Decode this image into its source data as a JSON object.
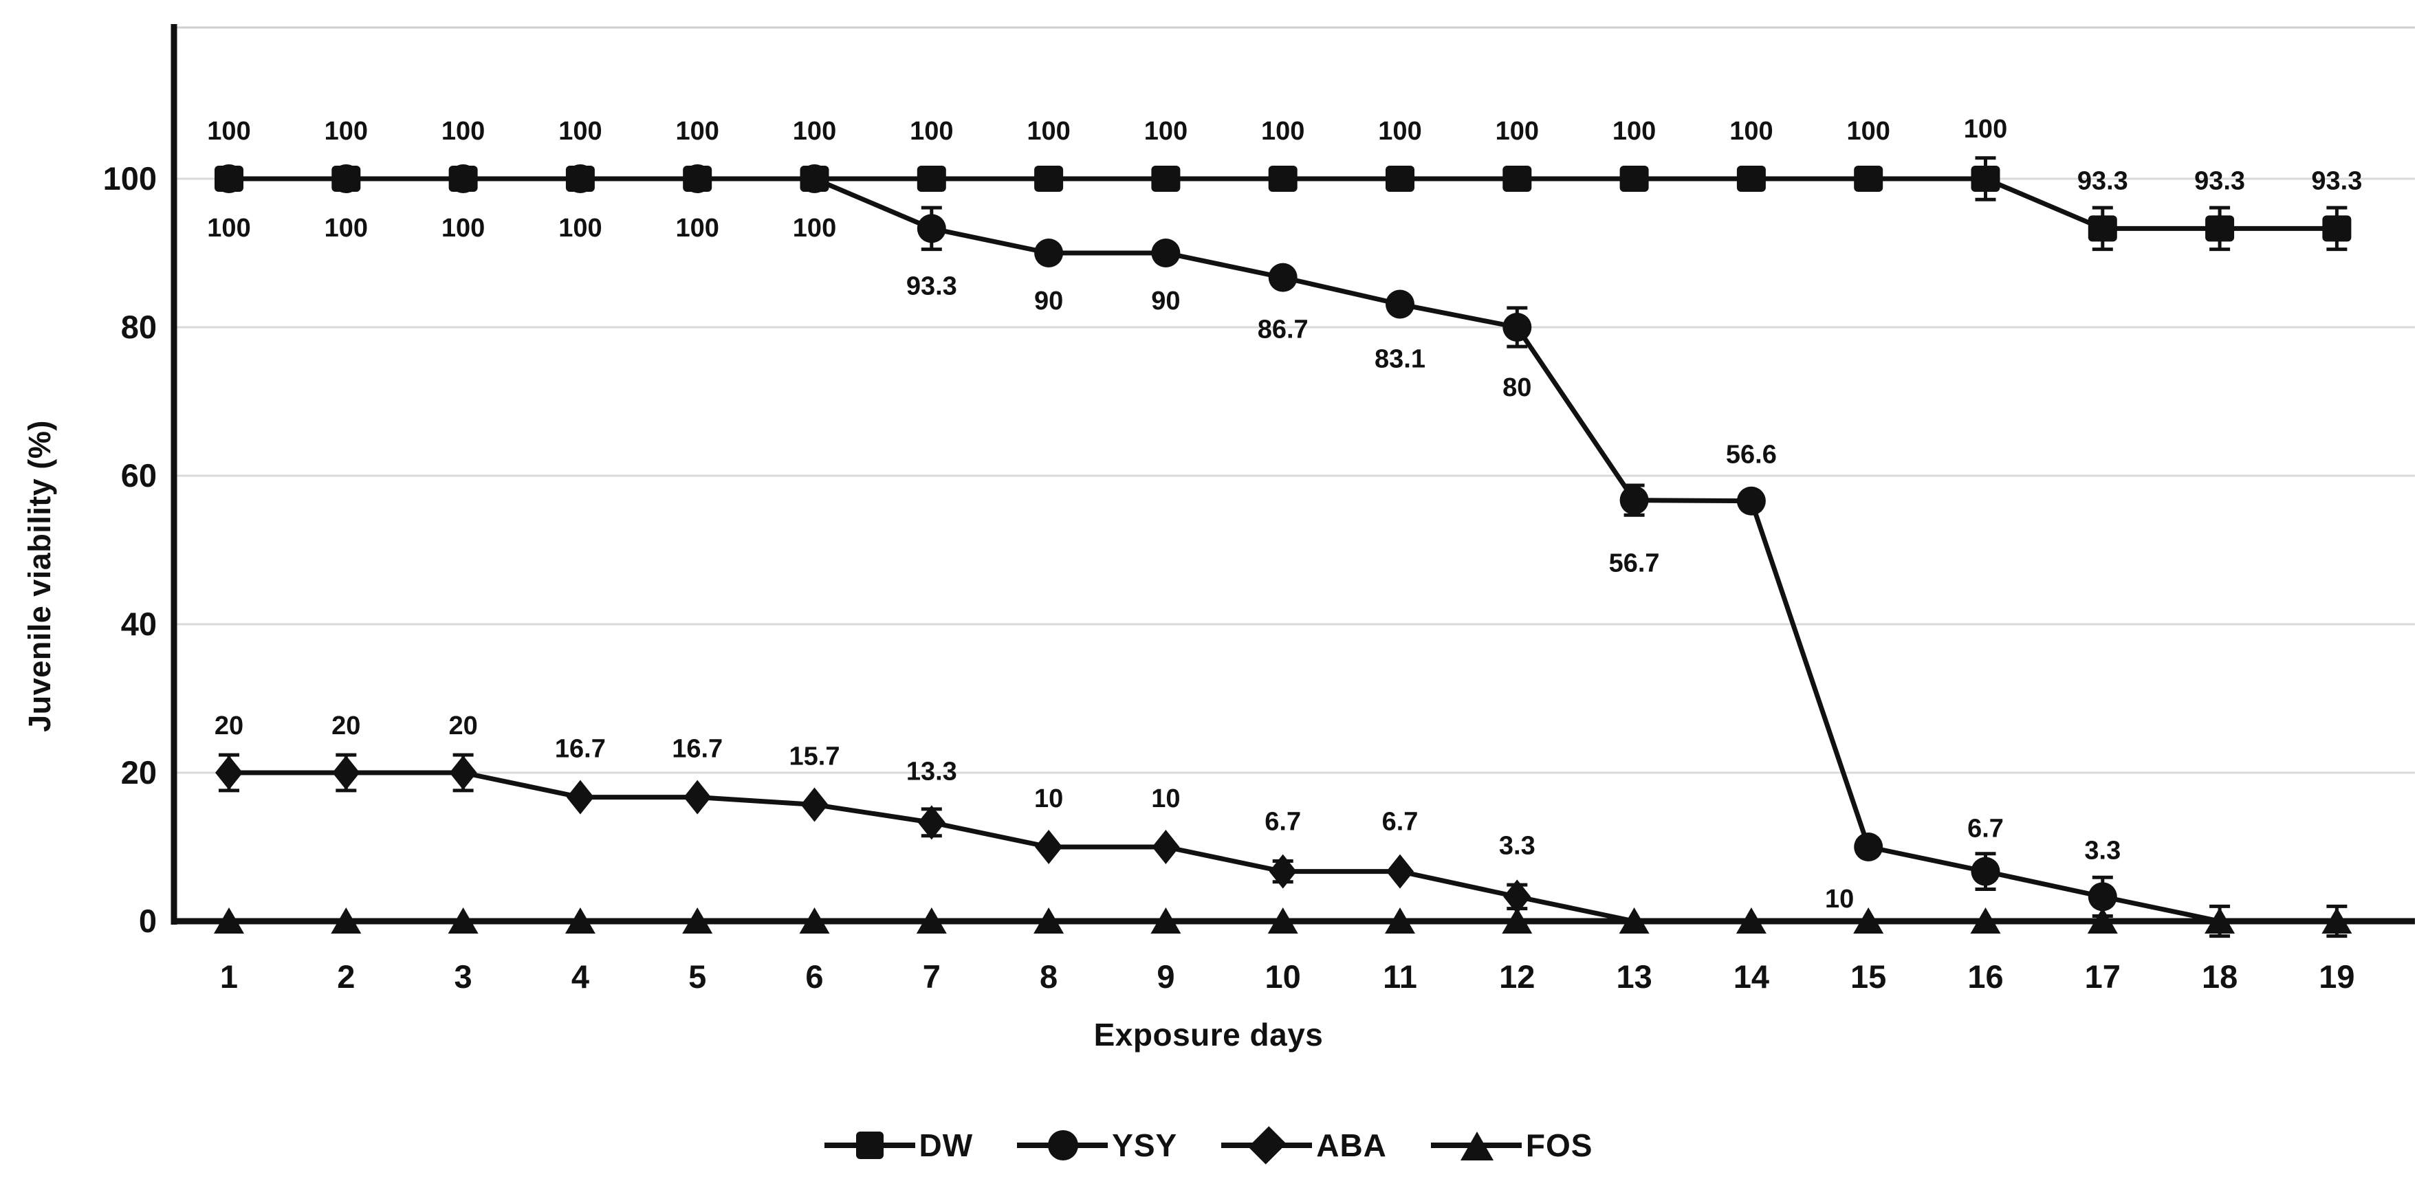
{
  "figure": {
    "type_label": "line chart",
    "background": "#ffffff"
  },
  "colors": {
    "foreground": "#111111",
    "grid": "#dadada",
    "top_border": "#cfcfcf",
    "background": "#ffffff"
  },
  "axes": {
    "ylabel": "Juvenile viability (%)",
    "xlabel": "Exposure days",
    "yticks": [
      0,
      20,
      40,
      60,
      80,
      100
    ],
    "ylim": [
      0,
      120
    ]
  },
  "legend": {
    "position": "bottom",
    "entries": [
      "DW",
      "YSY",
      "ABA",
      "FOS"
    ]
  },
  "chart_data": {
    "type": "line",
    "title": "",
    "xlabel": "Exposure days",
    "ylabel": "Juvenile viability (%)",
    "ylim": [
      0,
      120
    ],
    "grid": "horizontal",
    "legend_position": "bottom",
    "x": [
      1,
      2,
      3,
      4,
      5,
      6,
      7,
      8,
      9,
      10,
      11,
      12,
      13,
      14,
      15,
      16,
      17,
      18,
      19
    ],
    "yticks": [
      0,
      20,
      40,
      60,
      80,
      100
    ],
    "series": [
      {
        "name": "DW",
        "marker": "square",
        "values": [
          100,
          100,
          100,
          100,
          100,
          100,
          100,
          100,
          100,
          100,
          100,
          100,
          100,
          100,
          100,
          100,
          93.3,
          93.3,
          93.3
        ],
        "err": {
          "16": 2.8,
          "17": 2.8,
          "18": 2.8,
          "19": 2.8
        },
        "hide_markers": [],
        "point_labels": [
          {
            "day": 1,
            "text": "100",
            "dx": 0,
            "dy": -57
          },
          {
            "day": 2,
            "text": "100",
            "dx": 0,
            "dy": -57
          },
          {
            "day": 3,
            "text": "100",
            "dx": 0,
            "dy": -57
          },
          {
            "day": 4,
            "text": "100",
            "dx": 0,
            "dy": -57
          },
          {
            "day": 5,
            "text": "100",
            "dx": 0,
            "dy": -57
          },
          {
            "day": 6,
            "text": "100",
            "dx": 0,
            "dy": -57
          },
          {
            "day": 7,
            "text": "100",
            "dx": 0,
            "dy": -57
          },
          {
            "day": 8,
            "text": "100",
            "dx": 0,
            "dy": -57
          },
          {
            "day": 9,
            "text": "100",
            "dx": 0,
            "dy": -57
          },
          {
            "day": 10,
            "text": "100",
            "dx": 0,
            "dy": -57
          },
          {
            "day": 11,
            "text": "100",
            "dx": 0,
            "dy": -57
          },
          {
            "day": 12,
            "text": "100",
            "dx": 0,
            "dy": -57
          },
          {
            "day": 13,
            "text": "100",
            "dx": 0,
            "dy": -57
          },
          {
            "day": 14,
            "text": "100",
            "dx": 0,
            "dy": -57
          },
          {
            "day": 15,
            "text": "100",
            "dx": 0,
            "dy": -57
          },
          {
            "day": 16,
            "text": "100",
            "dx": 0,
            "dy": -60
          },
          {
            "day": 17,
            "text": "93.3",
            "dx": 0,
            "dy": -57
          },
          {
            "day": 18,
            "text": "93.3",
            "dx": 0,
            "dy": -57
          },
          {
            "day": 19,
            "text": "93.3",
            "dx": 0,
            "dy": -57
          }
        ]
      },
      {
        "name": "YSY",
        "marker": "circle",
        "values": [
          100,
          100,
          100,
          100,
          100,
          100,
          93.3,
          90,
          90,
          86.7,
          83.1,
          80,
          56.7,
          56.6,
          10,
          6.7,
          3.3,
          0,
          0
        ],
        "err": {
          "7": 2.8,
          "12": 2.6,
          "13": 2.0,
          "16": 2.4,
          "17": 2.6,
          "18": 2.0,
          "19": 2.0
        },
        "hide_markers": [
          18,
          19
        ],
        "point_labels": [
          {
            "day": 1,
            "text": "100",
            "dx": 0,
            "dy": 84
          },
          {
            "day": 2,
            "text": "100",
            "dx": 0,
            "dy": 84
          },
          {
            "day": 3,
            "text": "100",
            "dx": 0,
            "dy": 84
          },
          {
            "day": 4,
            "text": "100",
            "dx": 0,
            "dy": 84
          },
          {
            "day": 5,
            "text": "100",
            "dx": 0,
            "dy": 84
          },
          {
            "day": 6,
            "text": "100",
            "dx": 0,
            "dy": 84
          },
          {
            "day": 7,
            "text": "93.3",
            "dx": 0,
            "dy": 96
          },
          {
            "day": 8,
            "text": "90",
            "dx": 0,
            "dy": 82
          },
          {
            "day": 9,
            "text": "90",
            "dx": 0,
            "dy": 82
          },
          {
            "day": 10,
            "text": "86.7",
            "dx": 0,
            "dy": 88
          },
          {
            "day": 11,
            "text": "83.1",
            "dx": 0,
            "dy": 92
          },
          {
            "day": 12,
            "text": "80",
            "dx": 0,
            "dy": 100
          },
          {
            "day": 13,
            "text": "56.7",
            "dx": 0,
            "dy": 104
          },
          {
            "day": 14,
            "text": "56.6",
            "dx": 0,
            "dy": -55
          },
          {
            "day": 15,
            "text": "10",
            "dx": -42,
            "dy": 88
          },
          {
            "day": 16,
            "text": "6.7",
            "dx": 0,
            "dy": -50
          },
          {
            "day": 17,
            "text": "3.3",
            "dx": 0,
            "dy": -55
          }
        ]
      },
      {
        "name": "ABA",
        "marker": "diamond",
        "values": [
          20,
          20,
          20,
          16.7,
          16.7,
          15.7,
          13.3,
          10,
          10,
          6.7,
          6.7,
          3.3,
          0,
          0,
          0,
          0,
          0,
          0,
          0
        ],
        "err": {
          "1": 2.4,
          "2": 2.4,
          "3": 2.4,
          "7": 1.8,
          "10": 1.4,
          "12": 1.6
        },
        "hide_markers": [
          13,
          14,
          15,
          16,
          17,
          18,
          19
        ],
        "point_labels": [
          {
            "day": 1,
            "text": "20",
            "dx": 0,
            "dy": -56
          },
          {
            "day": 2,
            "text": "20",
            "dx": 0,
            "dy": -56
          },
          {
            "day": 3,
            "text": "20",
            "dx": 0,
            "dy": -56
          },
          {
            "day": 4,
            "text": "16.7",
            "dx": 0,
            "dy": -58
          },
          {
            "day": 5,
            "text": "16.7",
            "dx": 0,
            "dy": -58
          },
          {
            "day": 6,
            "text": "15.7",
            "dx": 0,
            "dy": -58
          },
          {
            "day": 7,
            "text": "13.3",
            "dx": 0,
            "dy": -62
          },
          {
            "day": 8,
            "text": "10",
            "dx": 0,
            "dy": -58
          },
          {
            "day": 9,
            "text": "10",
            "dx": 0,
            "dy": -58
          },
          {
            "day": 10,
            "text": "6.7",
            "dx": 0,
            "dy": -60
          },
          {
            "day": 11,
            "text": "6.7",
            "dx": 0,
            "dy": -60
          },
          {
            "day": 12,
            "text": "3.3",
            "dx": 0,
            "dy": -62
          }
        ]
      },
      {
        "name": "FOS",
        "marker": "triangle",
        "values": [
          0,
          0,
          0,
          0,
          0,
          0,
          0,
          0,
          0,
          0,
          0,
          0,
          0,
          0,
          0,
          0,
          0,
          0,
          0
        ],
        "err": {},
        "hide_markers": [],
        "point_labels": []
      }
    ]
  }
}
